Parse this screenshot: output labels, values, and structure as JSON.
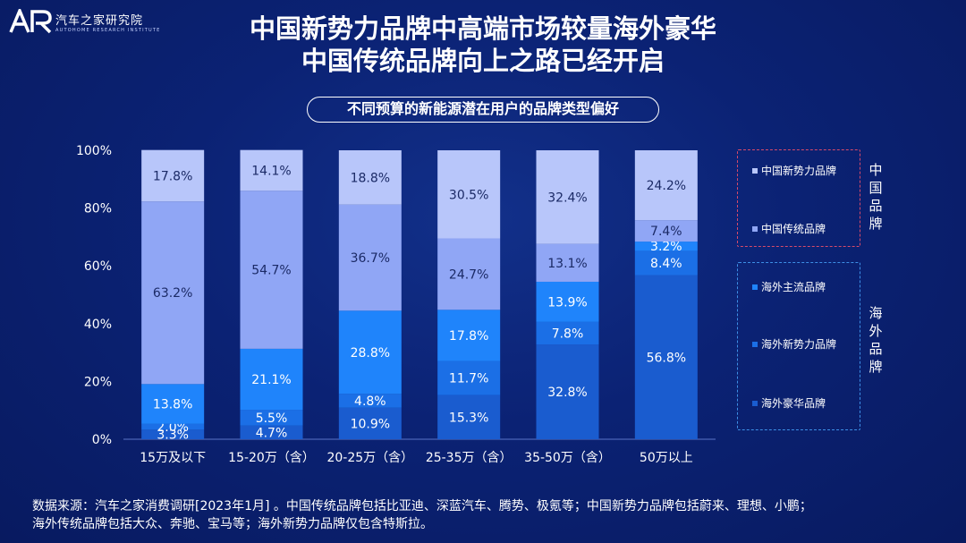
{
  "logo": {
    "mark": "AR",
    "name": "汽车之家研究院",
    "sub": "AUTOHOME RESEARCH INSTITUTE"
  },
  "title": {
    "line1": "中国新势力品牌中高端市场较量海外豪华",
    "line2": "中国传统品牌向上之路已经开启"
  },
  "subtitle": "不同预算的新能源潜在用户的品牌类型偏好",
  "legend": {
    "china_group_label": "中国品牌",
    "overseas_group_label": "海外品牌",
    "china_items": [
      "中国新势力品牌",
      "中国传统品牌"
    ],
    "overseas_items": [
      "海外主流品牌",
      "海外新势力品牌",
      "海外豪华品牌"
    ]
  },
  "footnote": {
    "line1": "数据来源：汽车之家消费调研[2023年1月] 。中国传统品牌包括比亚迪、深蓝汽车、腾势、极氪等；中国新势力品牌包括蔚来、理想、小鹏；",
    "line2": "海外传统品牌包括大众、奔驰、宝马等；海外新势力品牌仅包含特斯拉。"
  },
  "chart_data": {
    "type": "bar",
    "stacked": true,
    "percent": true,
    "categories": [
      "15万及以下",
      "15-20万（含）",
      "20-25万（含）",
      "25-35万（含）",
      "35-50万（含）",
      "50万以上"
    ],
    "ylim": [
      0,
      100
    ],
    "yticks": [
      "0%",
      "20%",
      "40%",
      "60%",
      "80%",
      "100%"
    ],
    "series": [
      {
        "name": "海外豪华品牌",
        "color": "#1a5ccf",
        "values": [
          3.3,
          4.7,
          10.9,
          15.3,
          32.8,
          56.8
        ],
        "labels": [
          "3.3%",
          "4.7%",
          "10.9%",
          "15.3%",
          "32.8%",
          "56.8%"
        ]
      },
      {
        "name": "海外新势力品牌",
        "color": "#1b6fe6",
        "values": [
          2.0,
          5.5,
          4.8,
          11.7,
          7.8,
          8.4
        ],
        "labels": [
          "2.0%",
          "5.5%",
          "4.8%",
          "11.7%",
          "7.8%",
          "8.4%"
        ]
      },
      {
        "name": "海外主流品牌",
        "color": "#1f84fb",
        "values": [
          13.8,
          21.1,
          28.8,
          17.8,
          13.9,
          3.2
        ],
        "labels": [
          "13.8%",
          "21.1%",
          "28.8%",
          "17.8%",
          "13.9%",
          "3.2%"
        ]
      },
      {
        "name": "中国传统品牌",
        "color": "#90a6f5",
        "values": [
          63.2,
          54.7,
          36.7,
          24.7,
          13.1,
          7.4
        ],
        "labels": [
          "63.2%",
          "54.7%",
          "36.7%",
          "24.7%",
          "13.1%",
          "7.4%"
        ]
      },
      {
        "name": "中国新势力品牌",
        "color": "#b8c6fa",
        "values": [
          17.8,
          14.1,
          18.8,
          30.5,
          32.4,
          24.2
        ],
        "labels": [
          "17.8%",
          "14.1%",
          "18.8%",
          "30.5%",
          "32.4%",
          "24.2%"
        ]
      }
    ]
  }
}
